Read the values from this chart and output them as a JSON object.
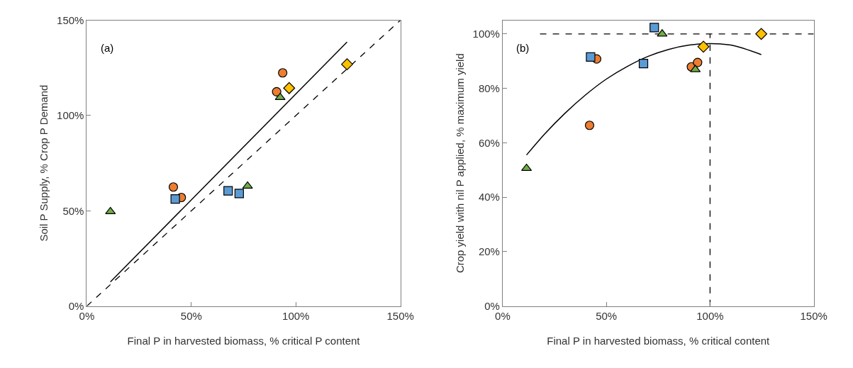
{
  "chart_data": [
    {
      "type": "scatter",
      "annotations": [
        "(a)"
      ],
      "xlabel": "Final P in harvested biomass, % critical P content",
      "ylabel": "Soil P Supply, % Crop P Demand",
      "xlim": [
        0,
        150
      ],
      "ylim": [
        0,
        150
      ],
      "xticks": [
        {
          "value": 0,
          "label": "0%"
        },
        {
          "value": 50,
          "label": "50%"
        },
        {
          "value": 100,
          "label": "100%"
        },
        {
          "value": 150,
          "label": "150%"
        }
      ],
      "yticks": [
        {
          "value": 0,
          "label": "0%"
        },
        {
          "value": 50,
          "label": "50%"
        },
        {
          "value": 100,
          "label": "100%"
        },
        {
          "value": 150,
          "label": "150%"
        }
      ],
      "series": [
        {
          "type": "line",
          "line_style": "dashed",
          "color": "#000000",
          "x": [
            0,
            150
          ],
          "values": [
            0,
            150
          ]
        },
        {
          "type": "line",
          "line_style": "solid",
          "color": "#000000",
          "x": [
            11.3,
            124.5
          ],
          "values": [
            12.7,
            138.6
          ]
        },
        {
          "marker": "circle",
          "color": "#ed7d31",
          "x": [
            41.4,
            45.2,
            93.7,
            90.8
          ],
          "values": [
            62.5,
            57,
            122.4,
            112.5
          ]
        },
        {
          "marker": "square",
          "color": "#5b9bd5",
          "x": [
            42.3,
            67.6,
            72.9
          ],
          "values": [
            56.2,
            60.5,
            59.1
          ]
        },
        {
          "marker": "triangle",
          "color": "#70ad47",
          "x": [
            11.3,
            76.9,
            92.5
          ],
          "values": [
            49.6,
            63,
            109.5
          ]
        },
        {
          "marker": "diamond",
          "color": "#ffc000",
          "x": [
            96.8,
            124.5
          ],
          "values": [
            114.4,
            126.9
          ]
        }
      ]
    },
    {
      "type": "scatter",
      "annotations": [
        "(b)"
      ],
      "xlabel": "Final P in harvested biomass, % critical content",
      "ylabel": "Crop yield with nil P applied, % maximum yield",
      "xlim": [
        0,
        150
      ],
      "ylim": [
        0,
        105
      ],
      "xticks": [
        {
          "value": 0,
          "label": "0%"
        },
        {
          "value": 50,
          "label": "50%"
        },
        {
          "value": 100,
          "label": "100%"
        },
        {
          "value": 150,
          "label": "150%"
        }
      ],
      "yticks": [
        {
          "value": 0,
          "label": "0%"
        },
        {
          "value": 20,
          "label": "20%"
        },
        {
          "value": 40,
          "label": "40%"
        },
        {
          "value": 60,
          "label": "60%"
        },
        {
          "value": 80,
          "label": "80%"
        },
        {
          "value": 100,
          "label": "100%"
        }
      ],
      "series": [
        {
          "type": "line",
          "line_style": "dashed",
          "color": "#000000",
          "x": [
            18,
            150
          ],
          "values": [
            100,
            100
          ]
        },
        {
          "type": "line",
          "line_style": "dashed",
          "color": "#000000",
          "x": [
            100,
            100
          ],
          "values": [
            0,
            100
          ]
        },
        {
          "type": "line",
          "line_style": "solid",
          "color": "#000000",
          "x": [
            11.5,
            20,
            30,
            40,
            50,
            60,
            70,
            80,
            90,
            100,
            110,
            124.7
          ],
          "values": [
            55.5,
            63,
            70.8,
            77.6,
            83.4,
            88,
            91.7,
            94.3,
            95.9,
            96.4,
            95.9,
            92.4
          ]
        },
        {
          "marker": "circle",
          "color": "#ed7d31",
          "x": [
            45.3,
            41.9,
            91,
            94
          ],
          "values": [
            90.8,
            66.4,
            87.9,
            89.5
          ]
        },
        {
          "marker": "square",
          "color": "#5b9bd5",
          "x": [
            73.1,
            42.4,
            67.9
          ],
          "values": [
            102.3,
            91.5,
            89.1
          ]
        },
        {
          "marker": "triangle",
          "color": "#70ad47",
          "x": [
            76.9,
            11.5,
            92.9
          ],
          "values": [
            100,
            50.6,
            86.9
          ]
        },
        {
          "marker": "diamond",
          "color": "#ffc000",
          "x": [
            96.8,
            124.7
          ],
          "values": [
            95.3,
            100
          ]
        }
      ]
    }
  ]
}
